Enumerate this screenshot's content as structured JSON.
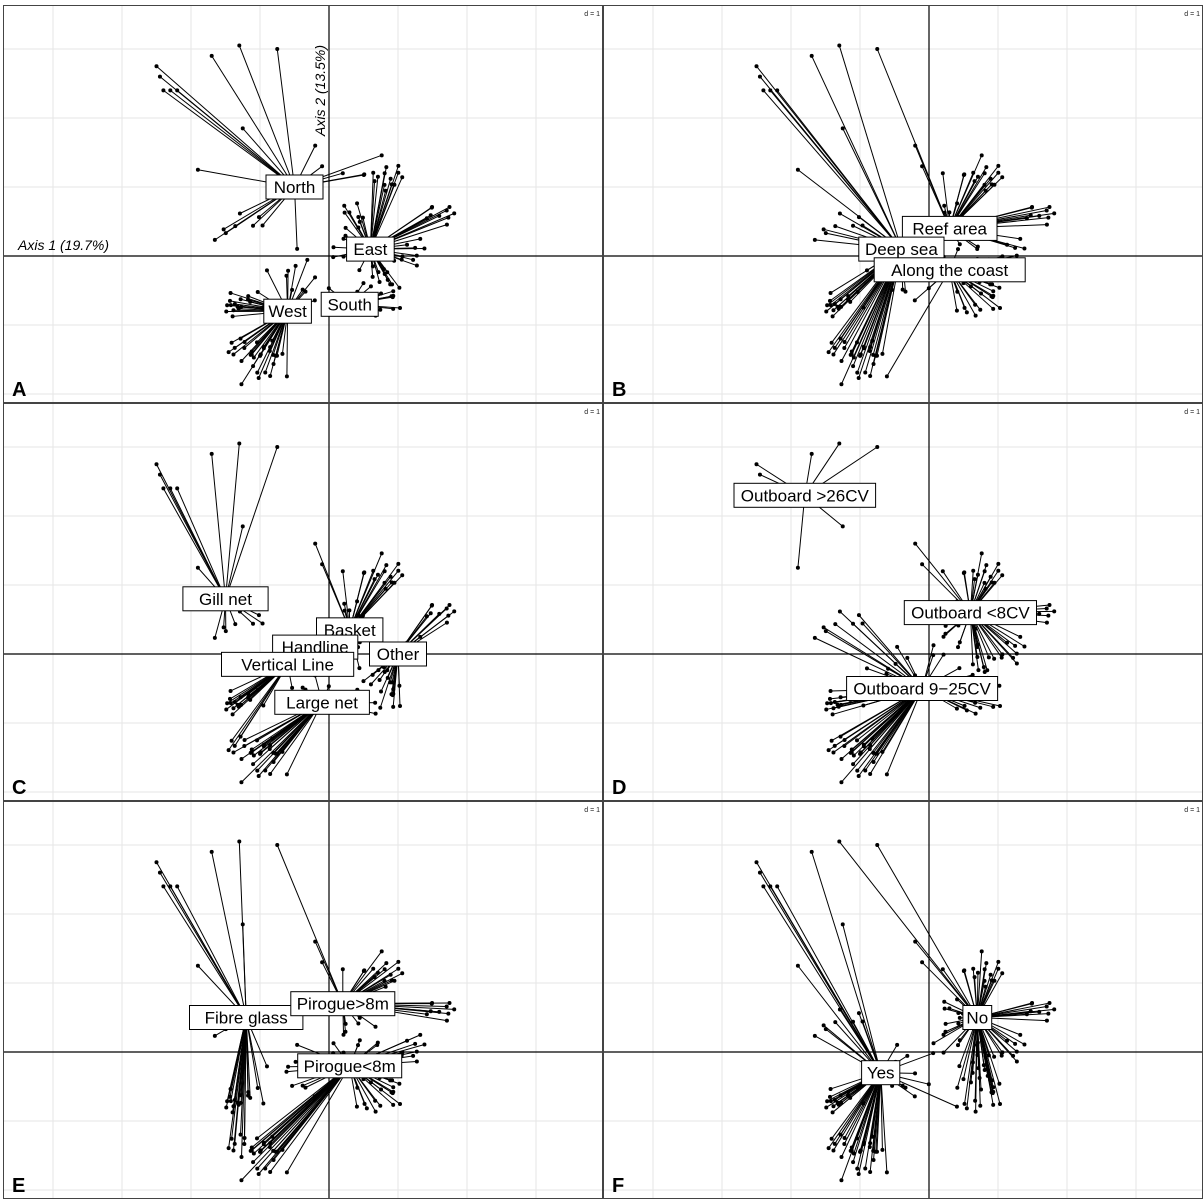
{
  "chart_data": [
    {
      "panel": "A",
      "type": "scatter",
      "scale_label": "d = 1",
      "axis1_label": "Axis 1 (19.7%)",
      "axis2_label": "Axis 2 (13.5%)",
      "groups": [
        {
          "name": "North",
          "centroid": [
            -0.5,
            1.0
          ]
        },
        {
          "name": "East",
          "centroid": [
            0.6,
            0.1
          ]
        },
        {
          "name": "South",
          "centroid": [
            0.3,
            -0.7
          ]
        },
        {
          "name": "West",
          "centroid": [
            -0.6,
            -0.8
          ]
        }
      ]
    },
    {
      "panel": "B",
      "type": "scatter",
      "scale_label": "d = 1",
      "groups": [
        {
          "name": "Reef area",
          "centroid": [
            0.3,
            0.4
          ]
        },
        {
          "name": "Deep sea",
          "centroid": [
            -0.4,
            0.1
          ]
        },
        {
          "name": "Along the coast",
          "centroid": [
            0.3,
            -0.2
          ]
        }
      ]
    },
    {
      "panel": "C",
      "type": "scatter",
      "scale_label": "d = 1",
      "groups": [
        {
          "name": "Gill net",
          "centroid": [
            -1.5,
            0.8
          ]
        },
        {
          "name": "Basket",
          "centroid": [
            0.3,
            0.35
          ]
        },
        {
          "name": "Handline",
          "centroid": [
            -0.2,
            0.1
          ]
        },
        {
          "name": "Other",
          "centroid": [
            1.0,
            0.0
          ]
        },
        {
          "name": "Vertical Line",
          "centroid": [
            -0.6,
            -0.15
          ]
        },
        {
          "name": "Large net",
          "centroid": [
            -0.1,
            -0.7
          ]
        }
      ]
    },
    {
      "panel": "D",
      "type": "scatter",
      "scale_label": "d = 1",
      "groups": [
        {
          "name": "Outboard >26CV",
          "centroid": [
            -1.8,
            2.3
          ]
        },
        {
          "name": "Outboard <8CV",
          "centroid": [
            0.6,
            0.6
          ]
        },
        {
          "name": "Outboard 9−25CV",
          "centroid": [
            -0.1,
            -0.5
          ]
        }
      ]
    },
    {
      "panel": "E",
      "type": "scatter",
      "scale_label": "d = 1",
      "groups": [
        {
          "name": "Fibre glass",
          "centroid": [
            -1.2,
            0.5
          ]
        },
        {
          "name": "Pirogue>8m",
          "centroid": [
            0.2,
            0.7
          ]
        },
        {
          "name": "Pirogue<8m",
          "centroid": [
            0.3,
            -0.2
          ]
        }
      ]
    },
    {
      "panel": "F",
      "type": "scatter",
      "scale_label": "d = 1",
      "groups": [
        {
          "name": "Yes",
          "centroid": [
            -0.7,
            -0.3
          ]
        },
        {
          "name": "No",
          "centroid": [
            0.7,
            0.5
          ]
        }
      ]
    }
  ]
}
